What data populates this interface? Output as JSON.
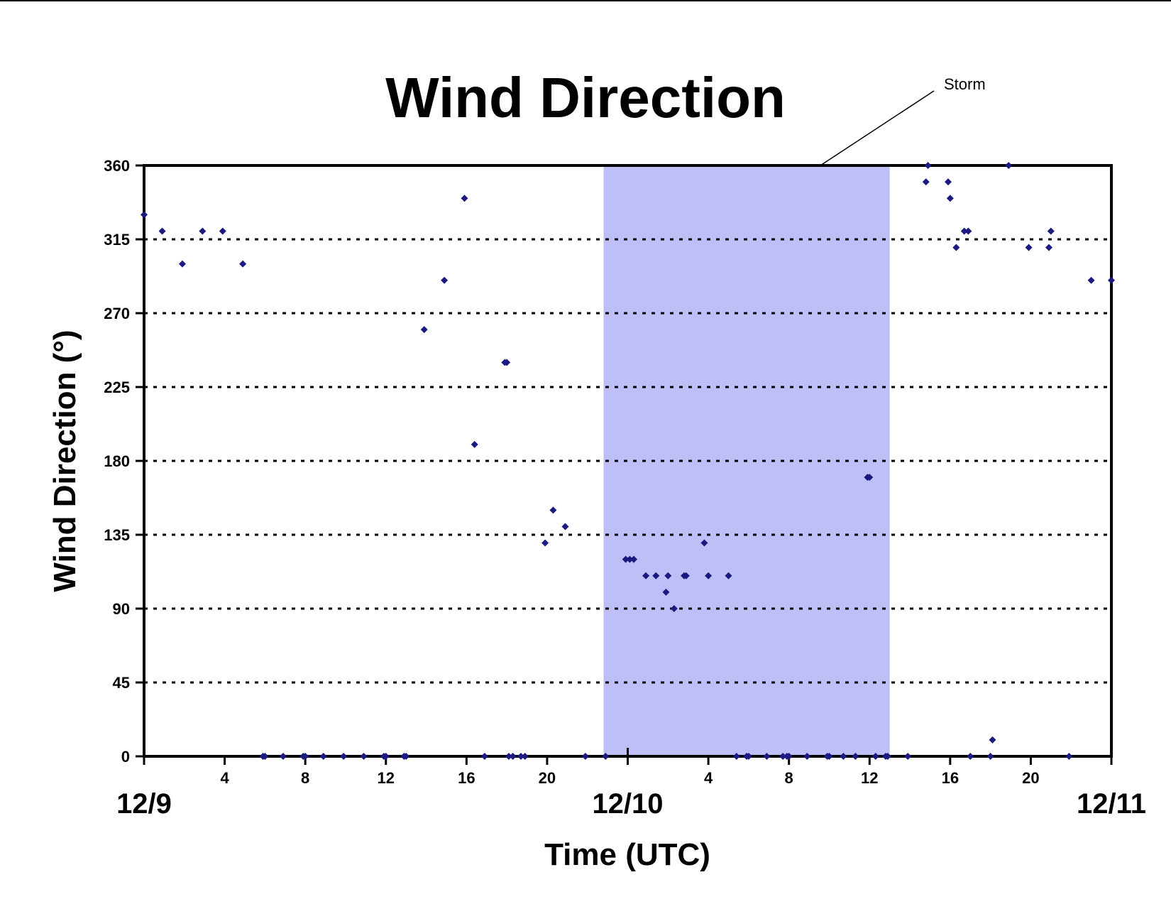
{
  "chart_data": {
    "type": "scatter",
    "title": "Wind Direction",
    "xlabel": "Time (UTC)",
    "ylabel": "Wind Direction (°)",
    "ylim": [
      0,
      360
    ],
    "yticks": [
      0,
      45,
      90,
      135,
      180,
      225,
      270,
      315,
      360
    ],
    "xlim_hours": [
      0,
      48
    ],
    "x_hour_ticks": [
      {
        "h": 4,
        "label": "4"
      },
      {
        "h": 8,
        "label": "8"
      },
      {
        "h": 12,
        "label": "12"
      },
      {
        "h": 16,
        "label": "16"
      },
      {
        "h": 20,
        "label": "20"
      },
      {
        "h": 28,
        "label": "4"
      },
      {
        "h": 32,
        "label": "8"
      },
      {
        "h": 36,
        "label": "12"
      },
      {
        "h": 40,
        "label": "16"
      },
      {
        "h": 44,
        "label": "20"
      }
    ],
    "x_day_labels": [
      {
        "h": 0,
        "label": "12/9"
      },
      {
        "h": 24,
        "label": "12/10"
      },
      {
        "h": 48,
        "label": "12/11"
      }
    ],
    "grid": "horizontal-dotted",
    "colors": {
      "marker": "#1a1a80",
      "storm_band": "#bfbff7",
      "axis": "#000000"
    },
    "storm": {
      "label": "Storm",
      "start_hour": 22.8,
      "end_hour": 37.0
    },
    "points": [
      [
        0,
        330
      ],
      [
        0.9,
        320
      ],
      [
        1.9,
        300
      ],
      [
        2.9,
        320
      ],
      [
        3.9,
        320
      ],
      [
        4.9,
        300
      ],
      [
        5.9,
        0
      ],
      [
        6.0,
        0
      ],
      [
        6.9,
        0
      ],
      [
        7.9,
        0
      ],
      [
        8.0,
        0
      ],
      [
        8.9,
        0
      ],
      [
        9.9,
        0
      ],
      [
        10.9,
        0
      ],
      [
        11.9,
        0
      ],
      [
        12.0,
        0
      ],
      [
        12.9,
        0
      ],
      [
        13.0,
        0
      ],
      [
        13.9,
        260
      ],
      [
        14.9,
        290
      ],
      [
        15.9,
        340
      ],
      [
        16.4,
        190
      ],
      [
        16.9,
        0
      ],
      [
        17.9,
        240
      ],
      [
        18.0,
        240
      ],
      [
        18.1,
        0
      ],
      [
        18.3,
        0
      ],
      [
        18.7,
        0
      ],
      [
        18.9,
        0
      ],
      [
        19.9,
        130
      ],
      [
        20.3,
        150
      ],
      [
        20.9,
        140
      ],
      [
        21.9,
        0
      ],
      [
        22.9,
        0
      ],
      [
        23.9,
        120
      ],
      [
        24.1,
        120
      ],
      [
        24.3,
        120
      ],
      [
        24.9,
        110
      ],
      [
        25.4,
        110
      ],
      [
        25.9,
        100
      ],
      [
        26.0,
        110
      ],
      [
        26.3,
        90
      ],
      [
        26.8,
        110
      ],
      [
        26.9,
        110
      ],
      [
        27.8,
        130
      ],
      [
        28.0,
        110
      ],
      [
        29.0,
        110
      ],
      [
        29.4,
        0
      ],
      [
        29.9,
        0
      ],
      [
        30.0,
        0
      ],
      [
        30.9,
        0
      ],
      [
        31.7,
        0
      ],
      [
        31.9,
        0
      ],
      [
        32.0,
        0
      ],
      [
        32.9,
        0
      ],
      [
        33.9,
        0
      ],
      [
        34.0,
        0
      ],
      [
        34.7,
        0
      ],
      [
        35.3,
        0
      ],
      [
        35.9,
        170
      ],
      [
        36.0,
        170
      ],
      [
        36.3,
        0
      ],
      [
        36.8,
        0
      ],
      [
        36.9,
        0
      ],
      [
        37.9,
        0
      ],
      [
        38.8,
        350
      ],
      [
        38.9,
        360
      ],
      [
        39.9,
        350
      ],
      [
        40.0,
        340
      ],
      [
        40.3,
        310
      ],
      [
        40.7,
        320
      ],
      [
        40.9,
        320
      ],
      [
        41.0,
        0
      ],
      [
        42.0,
        0
      ],
      [
        42.1,
        10
      ],
      [
        42.9,
        360
      ],
      [
        43.9,
        310
      ],
      [
        44.9,
        310
      ],
      [
        45.0,
        320
      ],
      [
        45.9,
        0
      ],
      [
        47.0,
        290
      ],
      [
        48.0,
        290
      ]
    ]
  }
}
